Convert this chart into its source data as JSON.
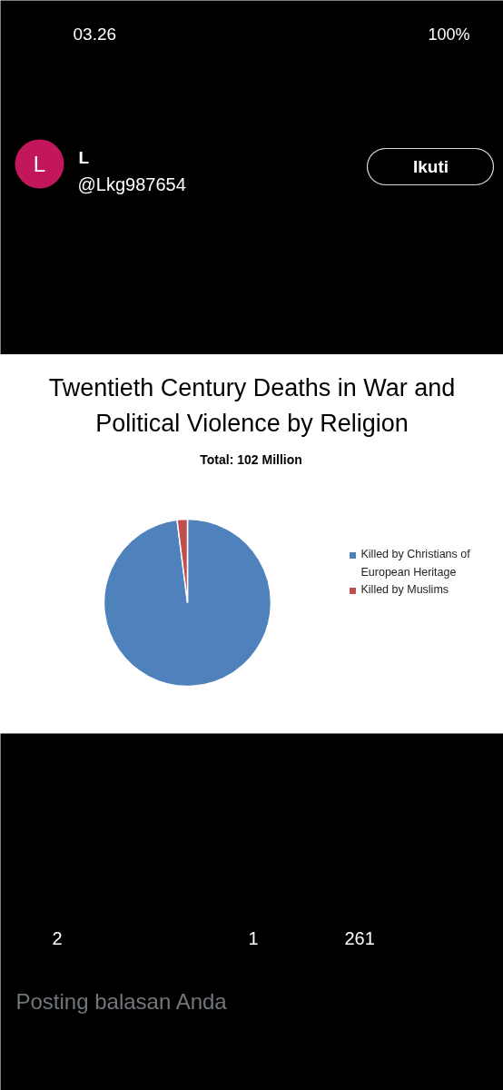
{
  "chart_data": [
    {
      "type": "other",
      "annotations": [
        "03.26",
        "100%",
        "L",
        "L",
        "@Lkg987654",
        "Ikuti"
      ]
    },
    {
      "type": "pie",
      "title": "Twentieth Century Deaths in War and Political Violence by Religion",
      "subtitle": "Total:  102 Million",
      "categories": [
        "Killed by Christians of European Heritage",
        "Killed by Muslims"
      ],
      "values": [
        98,
        2
      ],
      "colors": [
        "#4f81bd",
        "#c0504d"
      ],
      "legend": "right"
    },
    {
      "type": "other",
      "annotations": [
        "2",
        "1",
        "261",
        "Posting balasan Anda"
      ]
    }
  ]
}
